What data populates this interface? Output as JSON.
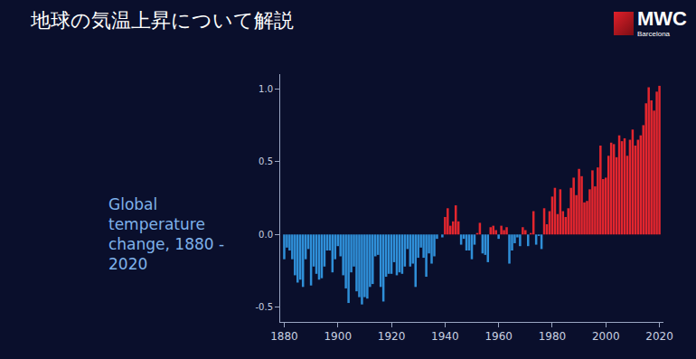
{
  "caption": "地球の気温上昇について解説",
  "logo": {
    "text": "MWC",
    "subtext": "Barcelona"
  },
  "chart_data": {
    "type": "bar",
    "title": "Global temperature change, 1880 - 2020",
    "x": [
      1880,
      1881,
      1882,
      1883,
      1884,
      1885,
      1886,
      1887,
      1888,
      1889,
      1890,
      1891,
      1892,
      1893,
      1894,
      1895,
      1896,
      1897,
      1898,
      1899,
      1900,
      1901,
      1902,
      1903,
      1904,
      1905,
      1906,
      1907,
      1908,
      1909,
      1910,
      1911,
      1912,
      1913,
      1914,
      1915,
      1916,
      1917,
      1918,
      1919,
      1920,
      1921,
      1922,
      1923,
      1924,
      1925,
      1926,
      1927,
      1928,
      1929,
      1930,
      1931,
      1932,
      1933,
      1934,
      1935,
      1936,
      1937,
      1938,
      1939,
      1940,
      1941,
      1942,
      1943,
      1944,
      1945,
      1946,
      1947,
      1948,
      1949,
      1950,
      1951,
      1952,
      1953,
      1954,
      1955,
      1956,
      1957,
      1958,
      1959,
      1960,
      1961,
      1962,
      1963,
      1964,
      1965,
      1966,
      1967,
      1968,
      1969,
      1970,
      1971,
      1972,
      1973,
      1974,
      1975,
      1976,
      1977,
      1978,
      1979,
      1980,
      1981,
      1982,
      1983,
      1984,
      1985,
      1986,
      1987,
      1988,
      1989,
      1990,
      1991,
      1992,
      1993,
      1994,
      1995,
      1996,
      1997,
      1998,
      1999,
      2000,
      2001,
      2002,
      2003,
      2004,
      2005,
      2006,
      2007,
      2008,
      2009,
      2010,
      2011,
      2012,
      2013,
      2014,
      2015,
      2016,
      2017,
      2018,
      2019,
      2020
    ],
    "values": [
      -0.17,
      -0.09,
      -0.11,
      -0.17,
      -0.28,
      -0.33,
      -0.31,
      -0.36,
      -0.17,
      -0.1,
      -0.35,
      -0.22,
      -0.27,
      -0.31,
      -0.3,
      -0.22,
      -0.11,
      -0.11,
      -0.26,
      -0.17,
      -0.08,
      -0.15,
      -0.28,
      -0.37,
      -0.47,
      -0.26,
      -0.22,
      -0.39,
      -0.43,
      -0.48,
      -0.43,
      -0.44,
      -0.36,
      -0.34,
      -0.15,
      -0.14,
      -0.36,
      -0.46,
      -0.29,
      -0.27,
      -0.27,
      -0.19,
      -0.28,
      -0.26,
      -0.27,
      -0.22,
      -0.1,
      -0.22,
      -0.2,
      -0.36,
      -0.16,
      -0.09,
      -0.16,
      -0.29,
      -0.13,
      -0.2,
      -0.15,
      -0.03,
      0.0,
      -0.02,
      0.12,
      0.18,
      0.06,
      0.09,
      0.2,
      0.09,
      -0.07,
      -0.03,
      -0.11,
      -0.11,
      -0.17,
      -0.07,
      0.01,
      0.08,
      -0.13,
      -0.14,
      -0.19,
      0.05,
      0.06,
      0.03,
      -0.03,
      0.06,
      0.03,
      0.05,
      -0.2,
      -0.11,
      -0.06,
      -0.02,
      -0.08,
      0.05,
      0.03,
      -0.08,
      0.01,
      0.16,
      -0.07,
      -0.01,
      -0.1,
      0.18,
      0.07,
      0.16,
      0.26,
      0.32,
      0.14,
      0.31,
      0.16,
      0.12,
      0.18,
      0.32,
      0.39,
      0.27,
      0.45,
      0.4,
      0.22,
      0.23,
      0.31,
      0.44,
      0.33,
      0.46,
      0.61,
      0.38,
      0.39,
      0.54,
      0.63,
      0.62,
      0.53,
      0.68,
      0.64,
      0.66,
      0.54,
      0.65,
      0.72,
      0.61,
      0.65,
      0.68,
      0.75,
      0.9,
      1.01,
      0.92,
      0.85,
      0.98,
      1.02
    ],
    "colors": [
      "#2f8fd8",
      "#2f8fd8",
      "#2f8fd8",
      "#2f8fd8",
      "#2f8fd8",
      "#2f8fd8",
      "#2f8fd8",
      "#2f8fd8",
      "#2f8fd8",
      "#2f8fd8",
      "#2f8fd8",
      "#2f8fd8",
      "#2f8fd8",
      "#2f8fd8",
      "#2f8fd8",
      "#2f8fd8",
      "#2f8fd8",
      "#2f8fd8",
      "#2f8fd8",
      "#2f8fd8",
      "#2f8fd8",
      "#2f8fd8",
      "#2f8fd8",
      "#2f8fd8",
      "#2f8fd8",
      "#2f8fd8",
      "#2f8fd8",
      "#2f8fd8",
      "#2f8fd8",
      "#2f8fd8",
      "#2f8fd8",
      "#2f8fd8",
      "#2f8fd8",
      "#2f8fd8",
      "#2f8fd8",
      "#2f8fd8",
      "#2f8fd8",
      "#2f8fd8",
      "#2f8fd8",
      "#2f8fd8",
      "#2f8fd8",
      "#2f8fd8",
      "#2f8fd8",
      "#2f8fd8",
      "#2f8fd8",
      "#2f8fd8",
      "#2f8fd8",
      "#2f8fd8",
      "#2f8fd8",
      "#2f8fd8",
      "#2f8fd8",
      "#2f8fd8",
      "#2f8fd8",
      "#2f8fd8",
      "#2f8fd8",
      "#2f8fd8",
      "#2f8fd8",
      "#2f8fd8",
      "#e3262e",
      "#2f8fd8",
      "#e3262e",
      "#e3262e",
      "#e3262e",
      "#e3262e",
      "#e3262e",
      "#e3262e",
      "#2f8fd8",
      "#2f8fd8",
      "#2f8fd8",
      "#2f8fd8",
      "#2f8fd8",
      "#2f8fd8",
      "#e3262e",
      "#e3262e",
      "#2f8fd8",
      "#2f8fd8",
      "#2f8fd8",
      "#e3262e",
      "#e3262e",
      "#e3262e",
      "#2f8fd8",
      "#e3262e",
      "#e3262e",
      "#e3262e",
      "#2f8fd8",
      "#2f8fd8",
      "#2f8fd8",
      "#2f8fd8",
      "#2f8fd8",
      "#e3262e",
      "#e3262e",
      "#2f8fd8",
      "#e3262e",
      "#e3262e",
      "#2f8fd8",
      "#2f8fd8",
      "#2f8fd8",
      "#e3262e",
      "#e3262e",
      "#e3262e",
      "#e3262e",
      "#e3262e",
      "#e3262e",
      "#e3262e",
      "#e3262e",
      "#e3262e",
      "#e3262e",
      "#e3262e",
      "#e3262e",
      "#e3262e",
      "#e3262e",
      "#e3262e",
      "#e3262e",
      "#e3262e",
      "#e3262e",
      "#e3262e",
      "#e3262e",
      "#e3262e",
      "#e3262e",
      "#e3262e",
      "#e3262e",
      "#e3262e",
      "#e3262e",
      "#e3262e",
      "#e3262e",
      "#e3262e",
      "#e3262e",
      "#e3262e",
      "#e3262e",
      "#e3262e",
      "#e3262e",
      "#e3262e",
      "#e3262e",
      "#e3262e",
      "#e3262e",
      "#e3262e",
      "#e3262e",
      "#e3262e",
      "#e3262e",
      "#e3262e",
      "#e3262e"
    ],
    "xlim": [
      1878.5,
      2021.5
    ],
    "xticks": [
      1880,
      1900,
      1920,
      1940,
      1960,
      1980,
      2000,
      2020
    ],
    "ylim": [
      -0.6,
      1.1
    ],
    "yticks": [
      {
        "value": -0.5,
        "label": "-0.5"
      },
      {
        "value": 0,
        "label": "0.0"
      },
      {
        "value": 0.5,
        "label": "0.5"
      },
      {
        "value": 1,
        "label": "1.0"
      }
    ],
    "grid": false
  }
}
